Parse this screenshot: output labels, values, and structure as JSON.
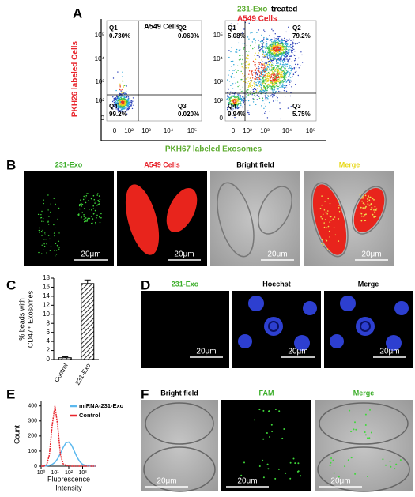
{
  "figure": {
    "panel_labels": [
      "A",
      "B",
      "C",
      "D",
      "E",
      "F"
    ],
    "panel_a": {
      "left_title": "A549 Cells",
      "right_title_green": "231-Exo",
      "right_title_black": "treated",
      "right_title_red": "A549 Cells",
      "y_label": "PKH26 labeled Cells",
      "x_label": "PKH67 labeled Exosomes",
      "y_ticks": [
        "10⁵",
        "10⁴",
        "10³",
        "10²",
        "0"
      ],
      "x_ticks": [
        "0",
        "10²",
        "10³",
        "10⁴",
        "10⁵"
      ],
      "left_quadrants": [
        [
          "Q1",
          "0.730%"
        ],
        [
          "Q2",
          "0.060%"
        ],
        [
          "Q3",
          "0.020%"
        ],
        [
          "Q4",
          "99.2%"
        ]
      ],
      "right_quadrants": [
        [
          "Q1",
          "5.08%"
        ],
        [
          "Q2",
          "79.2%"
        ],
        [
          "Q3",
          "5.75%"
        ],
        [
          "Q4",
          "9.94%"
        ]
      ]
    },
    "panel_b": {
      "titles": [
        "231-Exo",
        "A549 Cells",
        "Bright field",
        "Merge"
      ],
      "scale_bar": "20μm"
    },
    "panel_d": {
      "titles": [
        "231-Exo",
        "Hoechst",
        "Merge"
      ],
      "scale_bar": "20μm"
    },
    "panel_f": {
      "titles": [
        "Bright field",
        "FAM",
        "Merge"
      ],
      "scale_bar": "20μm"
    }
  },
  "chart_data": [
    {
      "type": "bar",
      "categories": [
        "Control",
        "231-Exo"
      ],
      "values": [
        0.4,
        16.8
      ],
      "errors": [
        0.2,
        0.8
      ],
      "ylabel": [
        "% beads with",
        "CD47⁺ Exosomes"
      ],
      "ylim": [
        0,
        18
      ],
      "yticks": [
        0,
        2,
        4,
        6,
        8,
        10,
        12,
        14,
        16,
        18
      ],
      "color": "#ffffff",
      "hatch": true
    },
    {
      "type": "line",
      "ylabel": "Count",
      "xlabel": [
        "Fluorescence",
        "Intensity"
      ],
      "x": [
        0,
        0.2,
        0.4,
        0.6,
        0.8,
        1.0,
        1.2,
        1.4,
        1.6,
        1.8,
        2.0,
        2.2,
        2.4,
        2.6,
        2.8,
        3.0,
        3.2,
        3.4,
        3.6,
        3.8,
        4.0
      ],
      "series": [
        {
          "name": "miRNA-231-Exo",
          "color": "#5bb8ee",
          "values": [
            0,
            0,
            2,
            5,
            12,
            25,
            50,
            85,
            125,
            155,
            160,
            140,
            100,
            60,
            30,
            12,
            5,
            2,
            0,
            0,
            0
          ]
        },
        {
          "name": "Control",
          "color": "#e8242c",
          "values": [
            0,
            0,
            10,
            75,
            270,
            400,
            270,
            75,
            15,
            5,
            2,
            0,
            0,
            0,
            0,
            0,
            0,
            0,
            0,
            0,
            0
          ]
        }
      ],
      "xlim": [
        0,
        4
      ],
      "xticks": [
        {
          "value": 0,
          "label": "10⁰"
        },
        {
          "value": 1,
          "label": "10¹"
        },
        {
          "value": 2,
          "label": "10²"
        },
        {
          "value": 3,
          "label": "10³"
        }
      ],
      "ylim": [
        0,
        430
      ],
      "yticks": [
        0,
        100,
        200,
        300,
        400
      ],
      "legend": "upper right"
    }
  ]
}
